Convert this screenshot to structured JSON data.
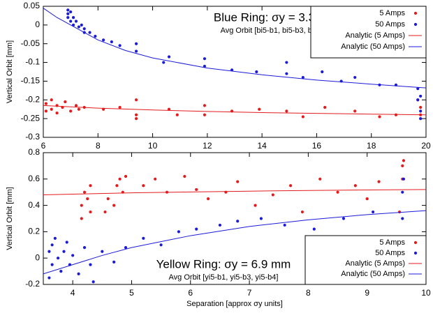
{
  "chart_data": [
    {
      "type": "scatter",
      "title": "Blue Ring: σy = 3.3 mm",
      "subtitle": "Avg Orbit [bi5-b1, bi5-b3, bi5-b4]",
      "ylabel": "Vertical Orbit [mm]",
      "xlim": [
        6,
        20
      ],
      "xticks": [
        6,
        8,
        10,
        12,
        14,
        16,
        18,
        20
      ],
      "ylim": [
        -0.3,
        0.05
      ],
      "yticks": [
        0.05,
        0,
        -0.05,
        -0.1,
        -0.15,
        -0.2,
        -0.25,
        -0.3
      ],
      "legend": "upper right",
      "series": [
        {
          "name": "5 Amps",
          "type": "scatter",
          "color": "#e41a1c",
          "x": [
            6.1,
            6.1,
            6.3,
            6.3,
            6.5,
            6.5,
            6.7,
            6.8,
            7.0,
            7.2,
            7.3,
            7.5,
            8.2,
            8.8,
            9.4,
            9.4,
            9.4,
            10.6,
            10.9,
            11.9,
            11.9,
            12.9,
            13.9,
            14.9,
            15.5,
            16.3,
            17.4,
            18.3,
            18.9,
            19.7,
            19.8,
            19.8
          ],
          "values": [
            -0.21,
            -0.23,
            -0.2,
            -0.225,
            -0.215,
            -0.235,
            -0.22,
            -0.205,
            -0.23,
            -0.215,
            -0.225,
            -0.22,
            -0.225,
            -0.22,
            -0.2,
            -0.24,
            -0.25,
            -0.225,
            -0.24,
            -0.215,
            -0.24,
            -0.23,
            -0.225,
            -0.23,
            -0.245,
            -0.22,
            -0.23,
            -0.245,
            -0.24,
            -0.2,
            -0.24,
            -0.22
          ]
        },
        {
          "name": "50 Amps",
          "type": "scatter",
          "color": "#1a1adb",
          "x": [
            6.9,
            6.9,
            6.9,
            7.0,
            7.0,
            7.1,
            7.1,
            7.2,
            7.3,
            7.4,
            7.5,
            7.5,
            7.7,
            7.9,
            8.2,
            8.5,
            8.8,
            9.4,
            9.4,
            10.4,
            10.6,
            11.9,
            11.9,
            12.9,
            13.8,
            14.9,
            14.9,
            15.5,
            16.2,
            16.9,
            17.4,
            18.3,
            18.9,
            19.7,
            19.7,
            19.8,
            19.8,
            19.8
          ],
          "values": [
            0.04,
            0.03,
            0.02,
            0.035,
            0.01,
            0.02,
            0,
            0.01,
            -0.005,
            0,
            -0.01,
            -0.02,
            -0.02,
            -0.03,
            -0.04,
            -0.045,
            -0.055,
            -0.05,
            -0.07,
            -0.1,
            -0.085,
            -0.11,
            -0.09,
            -0.12,
            -0.125,
            -0.13,
            -0.1,
            -0.14,
            -0.125,
            -0.15,
            -0.14,
            -0.16,
            -0.16,
            -0.17,
            -0.2,
            -0.23,
            -0.25,
            -0.19
          ]
        },
        {
          "name": "Analytic (5 Amps)",
          "type": "line",
          "color": "#e41a1c",
          "x": [
            6,
            8,
            10,
            12,
            14,
            16,
            18,
            20
          ],
          "values": [
            -0.215,
            -0.222,
            -0.227,
            -0.231,
            -0.234,
            -0.236,
            -0.238,
            -0.24
          ]
        },
        {
          "name": "Analytic (50 Amps)",
          "type": "line",
          "color": "#1a1adb",
          "x": [
            6,
            6.5,
            7,
            8,
            9,
            10,
            12,
            14,
            16,
            18,
            20
          ],
          "values": [
            0.045,
            0.02,
            0,
            -0.04,
            -0.068,
            -0.088,
            -0.115,
            -0.133,
            -0.147,
            -0.158,
            -0.168
          ]
        }
      ]
    },
    {
      "type": "scatter",
      "title": "Yellow Ring: σy = 6.9 mm",
      "subtitle": "Avg Orbit [yi5-b1, yi5-b3, yi5-b4]",
      "ylabel": "Vertical Orbit [mm]",
      "xlabel": "Separation [approx σy units]",
      "xlim": [
        3.5,
        10
      ],
      "xticks": [
        4,
        5,
        6,
        7,
        8,
        9,
        10
      ],
      "ylim": [
        -0.2,
        0.8
      ],
      "yticks": [
        -0.2,
        0,
        0.2,
        0.4,
        0.6,
        0.8
      ],
      "legend": "lower right",
      "series": [
        {
          "name": "5 Amps",
          "type": "scatter",
          "color": "#e41a1c",
          "x": [
            4.15,
            4.15,
            4.2,
            4.25,
            4.3,
            4.3,
            4.55,
            4.6,
            4.7,
            4.75,
            4.8,
            4.85,
            4.9,
            5.2,
            5.4,
            5.6,
            5.9,
            6.1,
            6.3,
            6.6,
            6.8,
            7.1,
            7.4,
            7.7,
            7.9,
            8.2,
            8.5,
            8.8,
            9.0,
            9.2,
            9.55,
            9.6,
            9.6,
            9.62
          ],
          "values": [
            0.3,
            0.4,
            0.5,
            0.45,
            0.35,
            0.55,
            0.35,
            0.45,
            0.4,
            0.55,
            0.6,
            0.5,
            0.62,
            0.55,
            0.6,
            0.5,
            0.62,
            0.52,
            0.45,
            0.5,
            0.58,
            0.4,
            0.48,
            0.55,
            0.35,
            0.6,
            0.5,
            0.55,
            0.45,
            0.58,
            0.35,
            0.6,
            0.7,
            0.74
          ]
        },
        {
          "name": "50 Amps",
          "type": "scatter",
          "color": "#1a1adb",
          "x": [
            3.6,
            3.6,
            3.65,
            3.65,
            3.7,
            3.75,
            3.8,
            3.85,
            3.9,
            3.95,
            4.0,
            4.1,
            4.2,
            4.3,
            4.35,
            4.5,
            4.7,
            4.9,
            5.2,
            5.5,
            5.8,
            6.1,
            6.5,
            6.8,
            7.2,
            7.6,
            8.1,
            8.6,
            9.1,
            9.55,
            9.6,
            9.6,
            9.62,
            9.6
          ],
          "values": [
            -0.15,
            0.05,
            0.1,
            -0.05,
            0.15,
            0,
            -0.1,
            0.05,
            0.12,
            -0.05,
            0.02,
            -0.12,
            0.08,
            -0.05,
            -0.18,
            0.05,
            -0.03,
            0.08,
            0.15,
            0.1,
            0.2,
            0.22,
            0.25,
            0.28,
            0.3,
            0.25,
            0.22,
            0.3,
            0.35,
            0.1,
            0.3,
            0.5,
            0.6,
            0
          ]
        },
        {
          "name": "Analytic (5 Amps)",
          "type": "line",
          "color": "#e41a1c",
          "x": [
            3.5,
            4,
            5,
            6,
            7,
            8,
            9,
            10
          ],
          "values": [
            0.48,
            0.485,
            0.495,
            0.502,
            0.508,
            0.513,
            0.517,
            0.52
          ]
        },
        {
          "name": "Analytic (50 Amps)",
          "type": "line",
          "color": "#1a1adb",
          "x": [
            3.5,
            4,
            4.5,
            5,
            6,
            7,
            8,
            9,
            10
          ],
          "values": [
            -0.12,
            -0.05,
            0.02,
            0.08,
            0.17,
            0.24,
            0.29,
            0.33,
            0.36
          ]
        }
      ]
    }
  ]
}
